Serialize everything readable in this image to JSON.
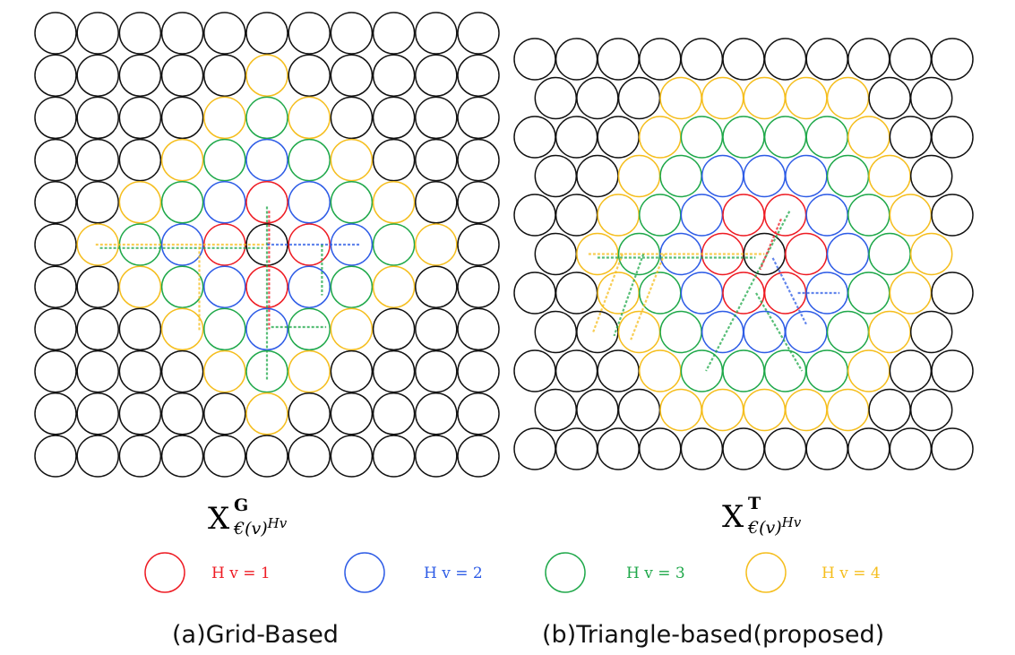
{
  "colors": {
    "hop1": "#ee1c24",
    "hop2": "#2e5ce6",
    "hop3": "#1fa84a",
    "hop4": "#f5be1e",
    "default": "#111111"
  },
  "panel_a": {
    "caption": "(a)Grid-Based",
    "formula": {
      "base": "X",
      "sup": "G",
      "sub_a": "€(v)",
      "sub_b": "H",
      "sub_c": "v"
    }
  },
  "panel_b": {
    "caption": "(b)Triangle-based(proposed)",
    "formula": {
      "base": "X",
      "sup": "T",
      "sub_a": "€(v)",
      "sub_b": "H",
      "sub_c": "v"
    }
  },
  "legend": [
    {
      "label": "H v = 1",
      "color": "#ee1c24"
    },
    {
      "label": "H v = 2",
      "color": "#2e5ce6"
    },
    {
      "label": "H v = 3",
      "color": "#1fa84a"
    },
    {
      "label": "H v = 4",
      "color": "#f5be1e"
    }
  ]
}
